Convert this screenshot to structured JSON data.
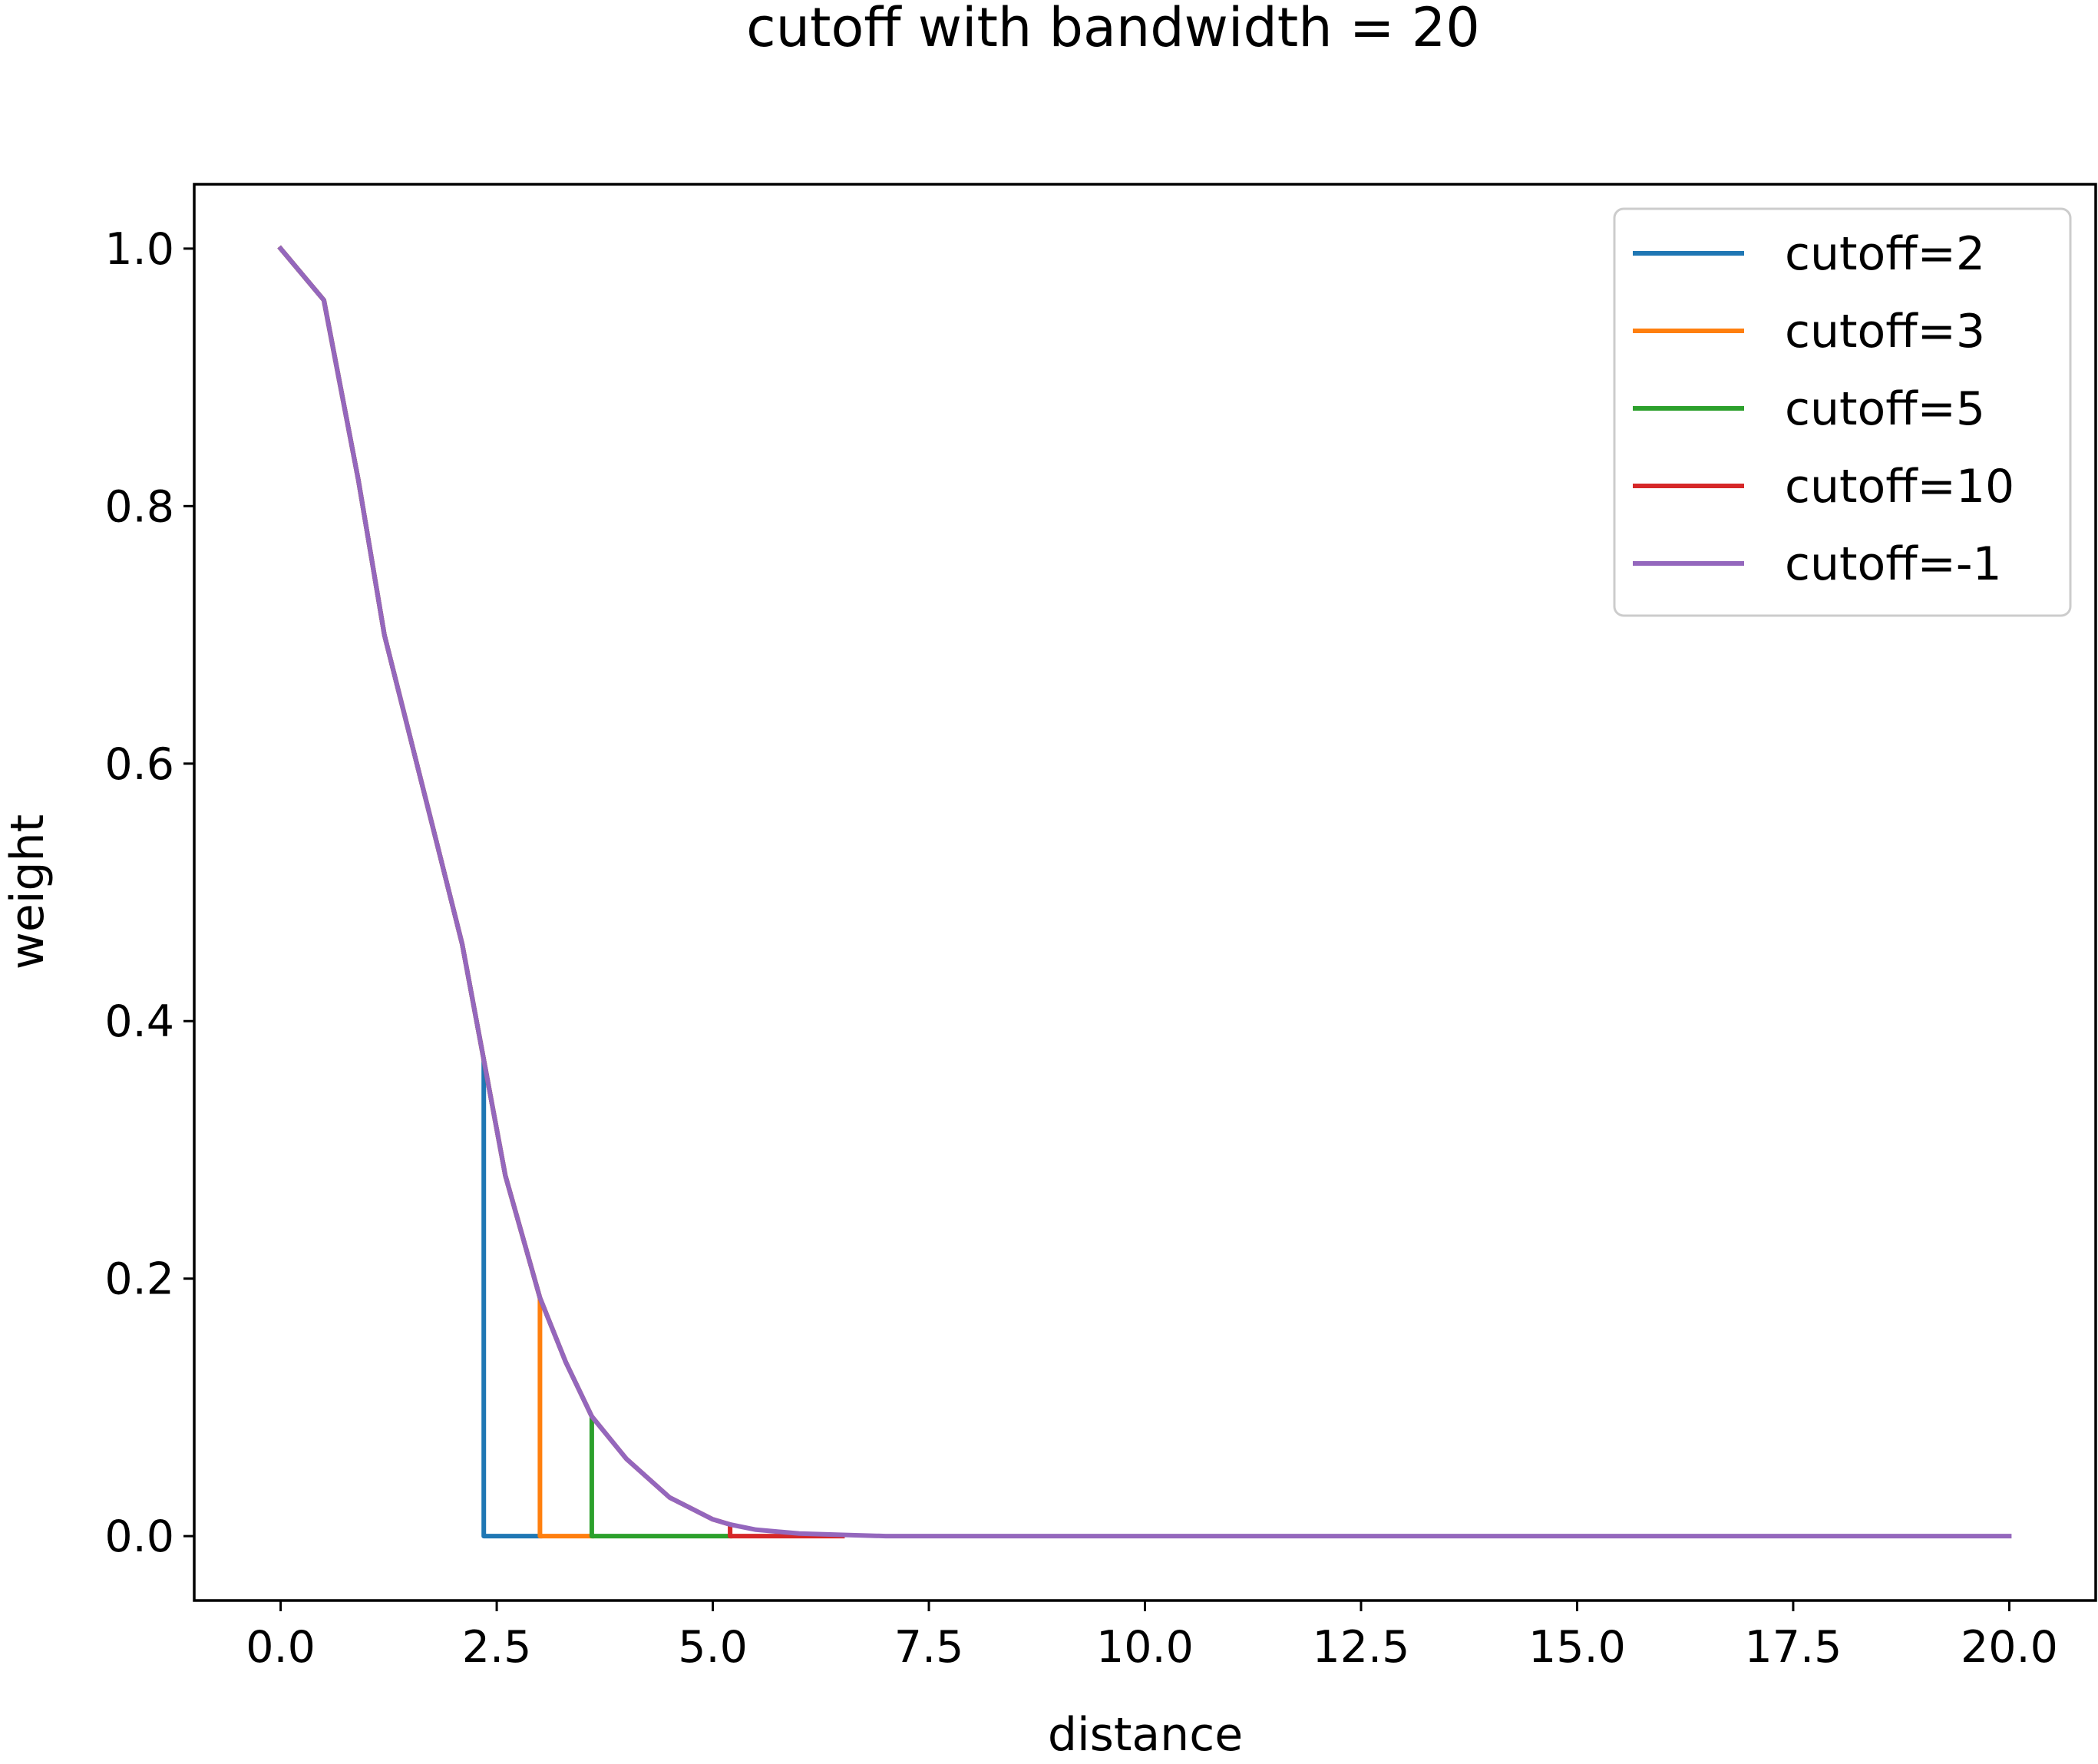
{
  "chart_data": {
    "type": "line",
    "title": "cutoff with bandwidth = 20",
    "xlabel": "distance",
    "ylabel": "weight",
    "xlim": [
      -1.0,
      21.0
    ],
    "ylim": [
      -0.05,
      1.05
    ],
    "xticks": [
      0.0,
      2.5,
      5.0,
      7.5,
      10.0,
      12.5,
      15.0,
      17.5,
      20.0
    ],
    "xtick_labels": [
      "0.0",
      "2.5",
      "5.0",
      "7.5",
      "10.0",
      "12.5",
      "15.0",
      "17.5",
      "20.0"
    ],
    "yticks": [
      0.0,
      0.2,
      0.4,
      0.6,
      0.8,
      1.0
    ],
    "ytick_labels": [
      "0.0",
      "0.2",
      "0.4",
      "0.6",
      "0.8",
      "1.0"
    ],
    "grid": false,
    "legend_position": "top-right",
    "curve": {
      "x": [
        0.0,
        0.5,
        0.9,
        1.2,
        1.5,
        1.8,
        2.1,
        2.35,
        2.6,
        3.0,
        3.3,
        3.6,
        4.0,
        4.5,
        5.0,
        5.2,
        5.5,
        6.0,
        6.5,
        7.0,
        8.0,
        10.0,
        12.5,
        15.0,
        17.5,
        20.0
      ],
      "y": [
        1.0,
        0.96,
        0.82,
        0.7,
        0.62,
        0.54,
        0.46,
        0.37,
        0.28,
        0.185,
        0.135,
        0.093,
        0.06,
        0.03,
        0.013,
        0.009,
        0.005,
        0.002,
        0.001,
        0.0,
        0.0,
        0.0,
        0.0,
        0.0,
        0.0,
        0.0
      ]
    },
    "series": [
      {
        "name": "cutoff=2",
        "color": "#1f77b4",
        "cutoff_x": 2.35,
        "end_x": 3.0
      },
      {
        "name": "cutoff=3",
        "color": "#ff7f0e",
        "cutoff_x": 3.0,
        "end_x": 3.6
      },
      {
        "name": "cutoff=5",
        "color": "#2ca02c",
        "cutoff_x": 3.6,
        "end_x": 5.2
      },
      {
        "name": "cutoff=10",
        "color": "#d62728",
        "cutoff_x": 5.2,
        "end_x": 6.5
      },
      {
        "name": "cutoff=-1",
        "color": "#9467bd",
        "cutoff_x": null,
        "end_x": 20.0
      }
    ]
  }
}
